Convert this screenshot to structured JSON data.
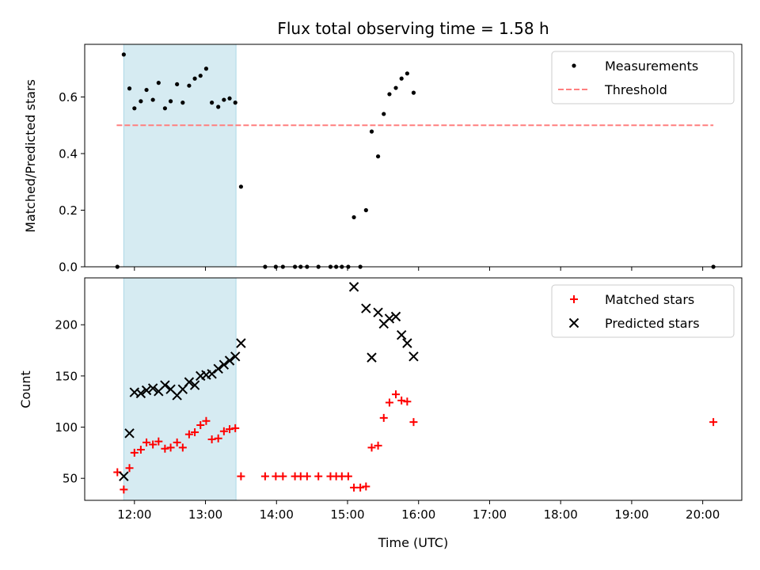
{
  "chart_data": {
    "type": "scatter",
    "title": "Flux total observing time = 1.58 h",
    "xlabel": "Time (UTC)",
    "x_ticks": [
      "12:00",
      "13:00",
      "14:00",
      "15:00",
      "16:00",
      "17:00",
      "18:00",
      "19:00",
      "20:00"
    ],
    "x_tick_hours": [
      12,
      13,
      14,
      15,
      16,
      17,
      18,
      19,
      20
    ],
    "xlim_hours": [
      11.3,
      20.55
    ],
    "shaded_interval_hours": [
      11.85,
      13.43
    ],
    "shade_color": "#add8e6",
    "panels": [
      {
        "ylabel": "Matched/Predicted stars",
        "ylim": [
          0,
          0.786
        ],
        "y_ticks": [
          0.0,
          0.2,
          0.4,
          0.6
        ],
        "y_tick_labels": [
          "0.0",
          "0.2",
          "0.4",
          "0.6"
        ],
        "legend_position": "upper right",
        "threshold": {
          "name": "Threshold",
          "value": 0.5,
          "x_range_hours": [
            11.75,
            20.15
          ],
          "color": "#ff7f7f"
        },
        "series": [
          {
            "name": "Measurements",
            "marker": "dot",
            "color": "#000000",
            "points": [
              [
                11.76,
                0.0
              ],
              [
                11.85,
                0.75
              ],
              [
                11.93,
                0.63
              ],
              [
                12.0,
                0.56
              ],
              [
                12.09,
                0.585
              ],
              [
                12.17,
                0.625
              ],
              [
                12.26,
                0.59
              ],
              [
                12.34,
                0.65
              ],
              [
                12.43,
                0.56
              ],
              [
                12.51,
                0.585
              ],
              [
                12.6,
                0.645
              ],
              [
                12.68,
                0.58
              ],
              [
                12.77,
                0.64
              ],
              [
                12.85,
                0.665
              ],
              [
                12.93,
                0.675
              ],
              [
                13.01,
                0.7
              ],
              [
                13.09,
                0.58
              ],
              [
                13.18,
                0.565
              ],
              [
                13.26,
                0.59
              ],
              [
                13.34,
                0.595
              ],
              [
                13.42,
                0.58
              ],
              [
                13.5,
                0.283
              ],
              [
                13.84,
                0.0
              ],
              [
                13.99,
                0.0
              ],
              [
                14.09,
                0.0
              ],
              [
                14.26,
                0.0
              ],
              [
                14.34,
                0.0
              ],
              [
                14.43,
                0.0
              ],
              [
                14.59,
                0.0
              ],
              [
                14.76,
                0.0
              ],
              [
                14.84,
                0.0
              ],
              [
                14.92,
                0.0
              ],
              [
                15.01,
                0.0
              ],
              [
                15.09,
                0.175
              ],
              [
                15.18,
                0.0
              ],
              [
                15.26,
                0.2
              ],
              [
                15.34,
                0.478
              ],
              [
                15.43,
                0.39
              ],
              [
                15.51,
                0.54
              ],
              [
                15.59,
                0.61
              ],
              [
                15.68,
                0.632
              ],
              [
                15.76,
                0.665
              ],
              [
                15.84,
                0.683
              ],
              [
                15.93,
                0.615
              ],
              [
                20.15,
                0.0
              ]
            ]
          }
        ]
      },
      {
        "ylabel": "Count",
        "ylim": [
          28.5,
          245.8
        ],
        "y_ticks": [
          50,
          100,
          150,
          200
        ],
        "y_tick_labels": [
          "50",
          "100",
          "150",
          "200"
        ],
        "legend_position": "upper right",
        "series": [
          {
            "name": "Matched stars",
            "marker": "plus",
            "color": "#ff0000",
            "points": [
              [
                11.76,
                56
              ],
              [
                11.85,
                39
              ],
              [
                11.93,
                60
              ],
              [
                12.0,
                75
              ],
              [
                12.09,
                78
              ],
              [
                12.17,
                85
              ],
              [
                12.26,
                83
              ],
              [
                12.34,
                86
              ],
              [
                12.43,
                79
              ],
              [
                12.51,
                80
              ],
              [
                12.6,
                85
              ],
              [
                12.68,
                80
              ],
              [
                12.77,
                93
              ],
              [
                12.85,
                95
              ],
              [
                12.93,
                102
              ],
              [
                13.01,
                106
              ],
              [
                13.09,
                88
              ],
              [
                13.18,
                89
              ],
              [
                13.26,
                96
              ],
              [
                13.34,
                98
              ],
              [
                13.42,
                99
              ],
              [
                13.5,
                52
              ],
              [
                13.84,
                52
              ],
              [
                13.99,
                52
              ],
              [
                14.09,
                52
              ],
              [
                14.26,
                52
              ],
              [
                14.34,
                52
              ],
              [
                14.43,
                52
              ],
              [
                14.59,
                52
              ],
              [
                14.76,
                52
              ],
              [
                14.84,
                52
              ],
              [
                14.92,
                52
              ],
              [
                15.01,
                52
              ],
              [
                15.09,
                41
              ],
              [
                15.18,
                41
              ],
              [
                15.26,
                42
              ],
              [
                15.34,
                80
              ],
              [
                15.43,
                82
              ],
              [
                15.51,
                109
              ],
              [
                15.59,
                124
              ],
              [
                15.68,
                132
              ],
              [
                15.76,
                126
              ],
              [
                15.84,
                125
              ],
              [
                15.93,
                105
              ],
              [
                20.15,
                105
              ]
            ]
          },
          {
            "name": "Predicted stars",
            "marker": "x",
            "color": "#000000",
            "points": [
              [
                11.85,
                52
              ],
              [
                11.93,
                94
              ],
              [
                12.0,
                134
              ],
              [
                12.09,
                133
              ],
              [
                12.17,
                136
              ],
              [
                12.26,
                138
              ],
              [
                12.34,
                135
              ],
              [
                12.43,
                141
              ],
              [
                12.51,
                137
              ],
              [
                12.6,
                131
              ],
              [
                12.68,
                137
              ],
              [
                12.77,
                144
              ],
              [
                12.85,
                141
              ],
              [
                12.93,
                150
              ],
              [
                13.01,
                151
              ],
              [
                13.09,
                152
              ],
              [
                13.18,
                157
              ],
              [
                13.26,
                161
              ],
              [
                13.34,
                165
              ],
              [
                13.42,
                169
              ],
              [
                13.5,
                182
              ],
              [
                15.09,
                237
              ],
              [
                15.26,
                216
              ],
              [
                15.34,
                168
              ],
              [
                15.43,
                212
              ],
              [
                15.51,
                201
              ],
              [
                15.59,
                206
              ],
              [
                15.68,
                208
              ],
              [
                15.76,
                190
              ],
              [
                15.84,
                182
              ],
              [
                15.93,
                169
              ]
            ]
          }
        ]
      }
    ]
  }
}
